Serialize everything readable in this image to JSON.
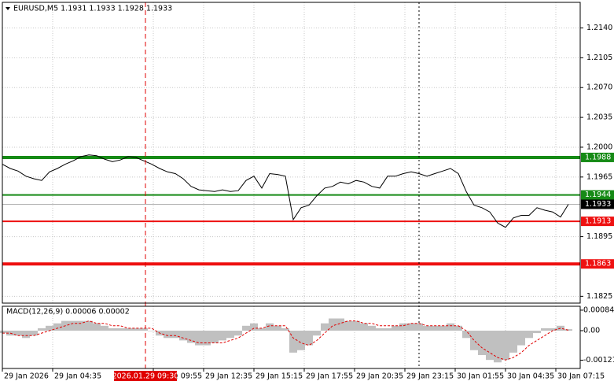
{
  "chart_data": [
    {
      "type": "line",
      "title": "EURUSD,M5  1.1931 1.1933 1.1928 1.1933",
      "color": "#000000",
      "values": [
        1.198,
        1.1975,
        1.1972,
        1.1966,
        1.1963,
        1.1961,
        1.1971,
        1.1975,
        1.198,
        1.1984,
        1.1989,
        1.1991,
        1.199,
        1.1986,
        1.1983,
        1.1985,
        1.1989,
        1.1988,
        1.1984,
        1.198,
        1.1975,
        1.1971,
        1.1969,
        1.1963,
        1.1954,
        1.195,
        1.1949,
        1.1948,
        1.195,
        1.1948,
        1.1949,
        1.1961,
        1.1966,
        1.1952,
        1.1969,
        1.1968,
        1.1966,
        1.1915,
        1.1929,
        1.1932,
        1.1943,
        1.1952,
        1.1954,
        1.1959,
        1.1957,
        1.1961,
        1.1959,
        1.1954,
        1.1952,
        1.1966,
        1.1966,
        1.1969,
        1.1971,
        1.1969,
        1.1966,
        1.1969,
        1.1972,
        1.1975,
        1.1969,
        1.1948,
        1.1932,
        1.1929,
        1.1924,
        1.1911,
        1.1906,
        1.1917,
        1.192,
        1.192,
        1.1929,
        1.1926,
        1.1924,
        1.1918,
        1.1933
      ],
      "xlim": [
        0,
        73.5
      ],
      "xticks": [
        {
          "value": 0,
          "label": "29 Jan 2026"
        },
        {
          "value": 6.4,
          "label": "29 Jan 04:35"
        },
        {
          "value": 19.2,
          "label": "29 Jan 09:55"
        },
        {
          "value": 25.6,
          "label": "29 Jan 12:35"
        },
        {
          "value": 32,
          "label": "29 Jan 15:15"
        },
        {
          "value": 38.4,
          "label": "29 Jan 17:55"
        },
        {
          "value": 44.8,
          "label": "29 Jan 20:35"
        },
        {
          "value": 51.2,
          "label": "29 Jan 23:15"
        },
        {
          "value": 57.6,
          "label": "30 Jan 01:55"
        },
        {
          "value": 64,
          "label": "30 Jan 04:35"
        },
        {
          "value": 70.4,
          "label": "30 Jan 07:15"
        }
      ],
      "ylim": [
        1.1817,
        1.217
      ],
      "yticks": [
        1.1825,
        1.1895,
        1.1965,
        {
          "value": 1.2,
          "label": "1.2000"
        },
        1.2035,
        {
          "value": 1.207,
          "label": "1.2070"
        },
        1.2105,
        {
          "value": 1.214,
          "label": "1.2140"
        }
      ],
      "grid": true,
      "last_price": 1.1933,
      "levels": [
        {
          "value": 1.1988,
          "color": "#168a16",
          "style": "thick"
        },
        {
          "value": 1.1944,
          "color": "#168a16",
          "style": "thin"
        },
        {
          "value": 1.1913,
          "color": "#ee1111",
          "style": "thin"
        },
        {
          "value": 1.1863,
          "color": "#ee1111",
          "style": "thick"
        }
      ],
      "markers": [
        {
          "x": 18.2,
          "label": "2026.01.29 09:30",
          "color": "#e00000"
        },
        {
          "x": 53,
          "color": "#000000"
        }
      ]
    },
    {
      "type": "bar",
      "title": "MACD(12,26,9) 0.00006 0.00002",
      "color": "#c0c0c0",
      "signal_color": "#e00000",
      "values": [
        -0.0001,
        -0.0002,
        -0.0002,
        -0.0003,
        -0.0002,
        0.0001,
        0.0002,
        0.0003,
        0.0004,
        0.0004,
        0.0004,
        0.0004,
        0.0003,
        0.0002,
        0.0001,
        0.0001,
        0.0001,
        0.0001,
        0.0001,
        0.0,
        -0.0002,
        -0.0003,
        -0.0003,
        -0.0004,
        -0.0005,
        -0.0006,
        -0.0006,
        -0.0005,
        -0.0004,
        -0.0003,
        -0.0002,
        0.0002,
        0.0003,
        0.0001,
        0.0003,
        0.0002,
        0.0001,
        -0.0009,
        -0.0008,
        -0.0006,
        -0.0002,
        0.0003,
        0.0005,
        0.0005,
        0.0004,
        0.0004,
        0.0003,
        0.0002,
        0.0001,
        0.0001,
        0.0002,
        0.0003,
        0.0003,
        0.0003,
        0.0002,
        0.0002,
        0.0002,
        0.0003,
        0.0002,
        -0.0003,
        -0.0008,
        -0.001,
        -0.0012,
        -0.0013,
        -0.0012,
        -0.0009,
        -0.0006,
        -0.0003,
        -0.0001,
        0.0001,
        0.0001,
        0.0002,
        6e-05
      ],
      "signal_values": [
        -0.0001,
        -0.0001,
        -0.0002,
        -0.0002,
        -0.0002,
        -0.0001,
        0.0,
        0.0001,
        0.0002,
        0.0003,
        0.0003,
        0.0004,
        0.0003,
        0.0003,
        0.0002,
        0.0002,
        0.0001,
        0.0001,
        0.0001,
        0.0001,
        -0.0001,
        -0.0002,
        -0.0002,
        -0.0003,
        -0.0004,
        -0.0005,
        -0.0005,
        -0.0005,
        -0.0005,
        -0.0004,
        -0.0003,
        -0.0001,
        0.0001,
        0.0001,
        0.0002,
        0.0002,
        0.0002,
        -0.0003,
        -0.0005,
        -0.0006,
        -0.0004,
        -0.0001,
        0.0002,
        0.0003,
        0.0004,
        0.0004,
        0.0003,
        0.0003,
        0.0002,
        0.0002,
        0.0002,
        0.0002,
        0.0003,
        0.0003,
        0.0002,
        0.0002,
        0.0002,
        0.0002,
        0.0002,
        0.0,
        -0.0004,
        -0.0007,
        -0.0009,
        -0.0011,
        -0.0012,
        -0.0011,
        -0.0009,
        -0.0006,
        -0.0004,
        -0.0002,
        0.0,
        0.0001,
        2e-05
      ],
      "ylim": [
        -0.00155,
        0.001
      ],
      "yticks": [
        0.00084,
        {
          "value": 0,
          "label": "0.00"
        },
        -0.00121
      ]
    }
  ]
}
